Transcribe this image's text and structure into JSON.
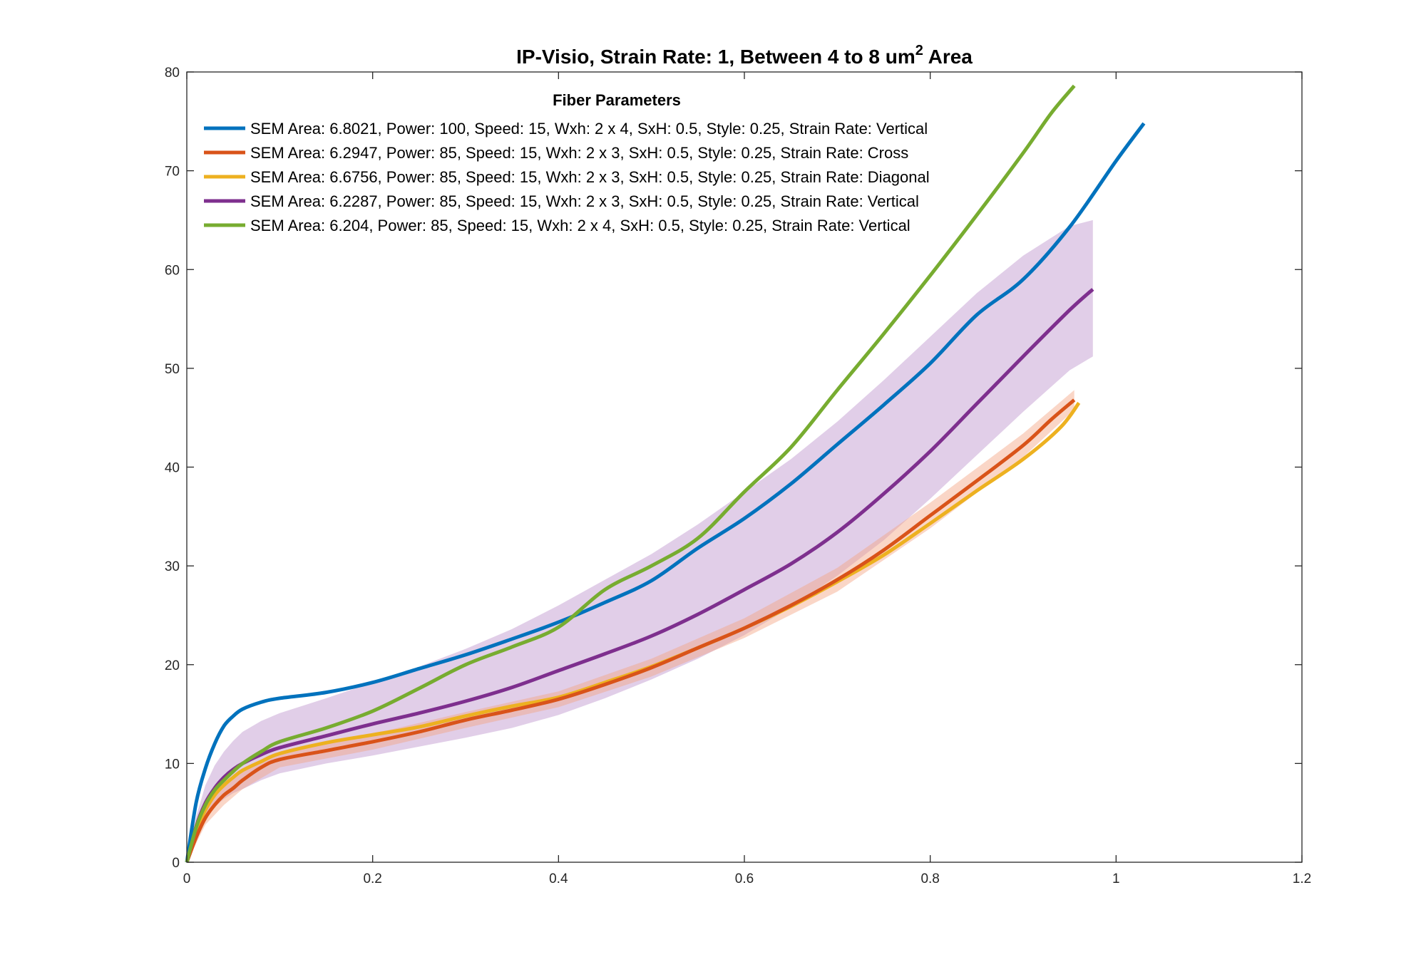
{
  "chart_data": {
    "type": "line",
    "title": "IP-Visio, Strain Rate: 1, Between 4 to 8 um",
    "title_superscript": "2",
    "title_suffix": " Area",
    "xlabel": "",
    "ylabel": "",
    "xlim": [
      0,
      1.2
    ],
    "ylim": [
      0,
      80
    ],
    "xticks": [
      0,
      0.2,
      0.4,
      0.6,
      0.8,
      1,
      1.2
    ],
    "xtick_labels": [
      "0",
      "0.2",
      "0.4",
      "0.6",
      "0.8",
      "1",
      "1.2"
    ],
    "yticks": [
      0,
      10,
      20,
      30,
      40,
      50,
      60,
      70,
      80
    ],
    "ytick_labels": [
      "0",
      "10",
      "20",
      "30",
      "40",
      "50",
      "60",
      "70",
      "80"
    ],
    "grid": false,
    "legend": {
      "title": "Fiber Parameters",
      "placement": "top-left"
    },
    "series": [
      {
        "name": "SEM Area: 6.8021, Power: 100, Speed: 15, Wxh: 2 x 4, SxH: 0.5, Style: 0.25, Strain Rate: Vertical",
        "color": "#0072BD",
        "x": [
          0,
          0.01,
          0.02,
          0.03,
          0.04,
          0.05,
          0.06,
          0.08,
          0.1,
          0.15,
          0.2,
          0.25,
          0.3,
          0.35,
          0.4,
          0.45,
          0.5,
          0.55,
          0.6,
          0.65,
          0.7,
          0.75,
          0.8,
          0.85,
          0.9,
          0.95,
          1.0,
          1.03
        ],
        "y": [
          0,
          6,
          9.5,
          12,
          13.8,
          14.8,
          15.5,
          16.2,
          16.6,
          17.2,
          18.2,
          19.6,
          21,
          22.6,
          24.3,
          26.3,
          28.5,
          31.8,
          34.8,
          38.3,
          42.3,
          46.3,
          50.5,
          55.4,
          59,
          64.3,
          71,
          74.8
        ]
      },
      {
        "name": "SEM Area: 6.2947, Power: 85, Speed: 15, Wxh: 2 x 3, SxH: 0.5, Style: 0.25, Strain Rate: Cross",
        "color": "#D95319",
        "x": [
          0,
          0.01,
          0.02,
          0.03,
          0.04,
          0.05,
          0.06,
          0.08,
          0.1,
          0.15,
          0.2,
          0.25,
          0.3,
          0.35,
          0.4,
          0.45,
          0.5,
          0.55,
          0.6,
          0.65,
          0.7,
          0.75,
          0.8,
          0.85,
          0.9,
          0.93,
          0.955
        ],
        "y": [
          0,
          2.5,
          4.5,
          5.8,
          6.8,
          7.5,
          8.3,
          9.6,
          10.4,
          11.3,
          12.2,
          13.2,
          14.4,
          15.4,
          16.5,
          18,
          19.7,
          21.7,
          23.7,
          26,
          28.6,
          31.6,
          35.1,
          38.6,
          42.2,
          44.8,
          46.8
        ]
      },
      {
        "name": "SEM Area: 6.6756, Power: 85, Speed: 15, Wxh: 2 x 3, SxH: 0.5, Style: 0.25, Strain Rate: Diagonal",
        "color": "#EDB120",
        "x": [
          0,
          0.01,
          0.02,
          0.03,
          0.04,
          0.05,
          0.06,
          0.08,
          0.1,
          0.15,
          0.2,
          0.25,
          0.3,
          0.35,
          0.4,
          0.45,
          0.5,
          0.55,
          0.6,
          0.65,
          0.7,
          0.75,
          0.8,
          0.85,
          0.9,
          0.94,
          0.96
        ],
        "y": [
          0,
          3.2,
          5.3,
          6.8,
          7.8,
          8.6,
          9.3,
          10.2,
          11,
          12.1,
          12.9,
          13.7,
          14.8,
          15.8,
          16.7,
          18.2,
          19.8,
          21.7,
          23.7,
          25.9,
          28.4,
          31.1,
          34.3,
          37.6,
          40.8,
          44,
          46.5
        ]
      },
      {
        "name": "SEM Area: 6.2287, Power: 85, Speed: 15, Wxh: 2 x 3, SxH: 0.5, Style: 0.25, Strain Rate: Vertical",
        "color": "#7E2F8E",
        "x": [
          0,
          0.01,
          0.02,
          0.03,
          0.04,
          0.05,
          0.06,
          0.08,
          0.1,
          0.15,
          0.2,
          0.25,
          0.3,
          0.35,
          0.4,
          0.45,
          0.5,
          0.55,
          0.6,
          0.65,
          0.7,
          0.75,
          0.8,
          0.85,
          0.9,
          0.95,
          0.975
        ],
        "y": [
          0,
          3.6,
          6,
          7.5,
          8.6,
          9.4,
          10,
          10.9,
          11.6,
          12.8,
          14,
          15.1,
          16.3,
          17.7,
          19.4,
          21.1,
          22.9,
          25.1,
          27.6,
          30.2,
          33.4,
          37.3,
          41.6,
          46.4,
          51.2,
          55.9,
          58
        ]
      },
      {
        "name": "SEM Area: 6.204, Power: 85, Speed: 15, Wxh: 2 x 4, SxH: 0.5, Style: 0.25, Strain Rate: Vertical",
        "color": "#77AC30",
        "x": [
          0,
          0.01,
          0.02,
          0.03,
          0.04,
          0.05,
          0.06,
          0.08,
          0.1,
          0.15,
          0.2,
          0.25,
          0.3,
          0.35,
          0.4,
          0.45,
          0.5,
          0.55,
          0.6,
          0.65,
          0.7,
          0.75,
          0.8,
          0.85,
          0.9,
          0.93,
          0.955
        ],
        "y": [
          0,
          3.5,
          5.8,
          7.3,
          8.3,
          9.2,
          10,
          11.2,
          12.2,
          13.6,
          15.3,
          17.6,
          20,
          21.8,
          23.8,
          27.6,
          30,
          32.8,
          37.5,
          42,
          47.8,
          53.5,
          59.4,
          65.5,
          71.8,
          75.8,
          78.6
        ]
      }
    ],
    "bands": [
      {
        "series_index": 3,
        "color": "#C9A6D5",
        "opacity": 0.55,
        "x": [
          0,
          0.01,
          0.02,
          0.03,
          0.04,
          0.05,
          0.06,
          0.08,
          0.1,
          0.15,
          0.2,
          0.25,
          0.3,
          0.35,
          0.4,
          0.45,
          0.5,
          0.55,
          0.6,
          0.65,
          0.7,
          0.75,
          0.8,
          0.85,
          0.9,
          0.95,
          0.975
        ],
        "upper": [
          0,
          4.6,
          7.8,
          9.8,
          11.2,
          12.3,
          13.2,
          14.3,
          15.1,
          16.6,
          18.2,
          19.8,
          21.6,
          23.6,
          26,
          28.6,
          31.2,
          34.2,
          37.5,
          40.8,
          44.6,
          48.8,
          53.2,
          57.6,
          61.4,
          64.4,
          65
        ]
      },
      {
        "series_index": 3,
        "lower_only": true,
        "x": [
          0,
          0.01,
          0.02,
          0.03,
          0.04,
          0.05,
          0.06,
          0.08,
          0.1,
          0.15,
          0.2,
          0.25,
          0.3,
          0.35,
          0.4,
          0.45,
          0.5,
          0.55,
          0.6,
          0.65,
          0.7,
          0.75,
          0.8,
          0.85,
          0.9,
          0.95,
          0.975
        ],
        "lower": [
          0,
          2.6,
          4.4,
          5.6,
          6.4,
          7,
          7.4,
          8.3,
          9,
          10,
          10.8,
          11.7,
          12.6,
          13.6,
          14.9,
          16.6,
          18.5,
          20.6,
          23,
          25.8,
          29,
          32.6,
          36.8,
          41.2,
          45.6,
          49.8,
          51.2
        ]
      },
      {
        "series_index": 1,
        "color": "#F4A582",
        "opacity": 0.45,
        "x": [
          0,
          0.02,
          0.04,
          0.06,
          0.1,
          0.2,
          0.3,
          0.4,
          0.5,
          0.6,
          0.7,
          0.8,
          0.9,
          0.955
        ],
        "upper": [
          0,
          5.2,
          7.8,
          9.2,
          11.2,
          13,
          15.2,
          17.3,
          20.6,
          24.7,
          29.8,
          36.4,
          43.4,
          47.8
        ],
        "lower": [
          0,
          3.8,
          5.8,
          7.4,
          9.6,
          11.4,
          13.6,
          15.7,
          18.8,
          22.7,
          27.4,
          33.8,
          41,
          45.8
        ]
      }
    ]
  }
}
